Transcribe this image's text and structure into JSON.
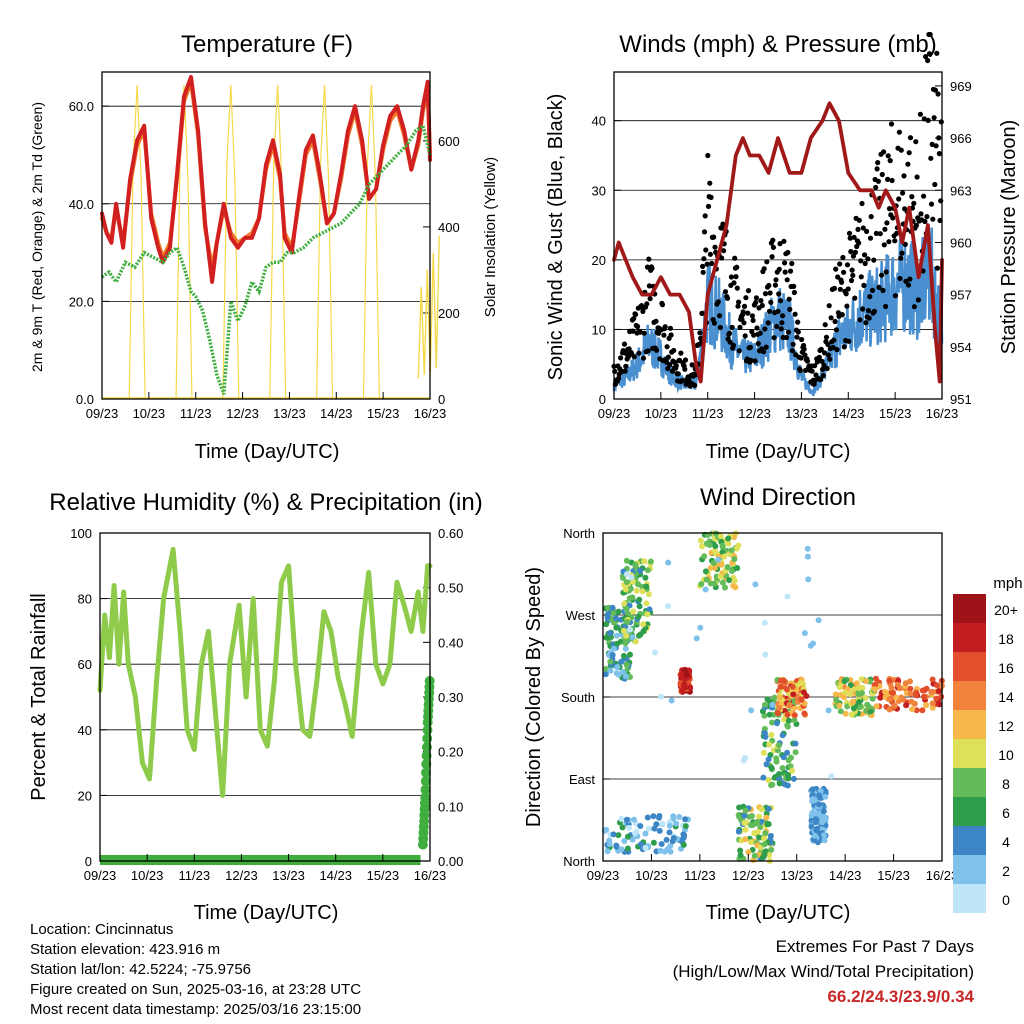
{
  "colors": {
    "temp_2m": "#d22020",
    "temp_9m": "#f07a2a",
    "dewpoint": "#3fae3f",
    "solar": "#f5d94a",
    "wind": "#4a90d0",
    "gust": "#000000",
    "pressure": "#a01818",
    "rh": "#8fcb4a",
    "precip": "#3fae3f",
    "extremes": "#c62828"
  },
  "x_ticks": [
    "09/23",
    "10/23",
    "11/23",
    "12/23",
    "13/23",
    "14/23",
    "15/23",
    "16/23"
  ],
  "chart_data": [
    {
      "id": "temperature",
      "type": "line",
      "title": "Temperature (F)",
      "xlabel": "Time (Day/UTC)",
      "ylabel_left": "2m & 9m T (Red, Orange) & 2m Td (Green)",
      "ylabel_right": "Solar Insolation (Yellow)",
      "ylim_left": [
        0,
        67
      ],
      "yticks_left": [
        "0.0",
        "20.0",
        "40.0",
        "60.0"
      ],
      "ylim_right": [
        0,
        760
      ],
      "yticks_right": [
        "0",
        "200",
        "400",
        "600"
      ],
      "x_unit": "days since 09/23",
      "series": [
        {
          "name": "2m T",
          "axis": "left",
          "x": [
            0,
            0.1,
            0.2,
            0.3,
            0.45,
            0.6,
            0.75,
            0.9,
            1.05,
            1.2,
            1.3,
            1.45,
            1.6,
            1.75,
            1.9,
            2.05,
            2.2,
            2.35,
            2.45,
            2.6,
            2.75,
            2.9,
            3.05,
            3.2,
            3.35,
            3.5,
            3.65,
            3.8,
            3.9,
            4.05,
            4.2,
            4.35,
            4.5,
            4.65,
            4.8,
            4.95,
            5.1,
            5.25,
            5.4,
            5.55,
            5.7,
            5.85,
            6.0,
            6.15,
            6.3,
            6.45,
            6.6,
            6.75,
            6.85,
            6.95,
            7.0
          ],
          "y": [
            38,
            34,
            32,
            40,
            31,
            45,
            53,
            56,
            37,
            31,
            28,
            31,
            46,
            62,
            66,
            55,
            36,
            24,
            32,
            40,
            33,
            31,
            33,
            33,
            37,
            48,
            53,
            46,
            33,
            30,
            41,
            51,
            54,
            46,
            36,
            38,
            46,
            55,
            60,
            53,
            41,
            43,
            52,
            58,
            60,
            55,
            47,
            53,
            60,
            65,
            49
          ]
        },
        {
          "name": "9m T",
          "axis": "left",
          "x": [
            0,
            0.1,
            0.2,
            0.3,
            0.45,
            0.6,
            0.75,
            0.9,
            1.05,
            1.2,
            1.3,
            1.45,
            1.6,
            1.75,
            1.9,
            2.05,
            2.2,
            2.35,
            2.45,
            2.6,
            2.75,
            2.9,
            3.05,
            3.2,
            3.35,
            3.5,
            3.65,
            3.8,
            3.9,
            4.05,
            4.2,
            4.35,
            4.5,
            4.65,
            4.8,
            4.95,
            5.1,
            5.25,
            5.4,
            5.55,
            5.7,
            5.85,
            6.0,
            6.15,
            6.3,
            6.45,
            6.6,
            6.75,
            6.85,
            6.95,
            7.0
          ],
          "y": [
            37,
            34,
            33,
            39,
            32,
            44,
            52,
            55,
            38,
            32,
            29,
            32,
            45,
            61,
            65,
            54,
            35,
            27,
            32,
            39,
            34,
            32,
            33,
            34,
            37,
            47,
            52,
            45,
            34,
            31,
            40,
            50,
            53,
            45,
            36,
            38,
            45,
            54,
            59,
            52,
            41,
            43,
            51,
            57,
            59,
            54,
            47,
            52,
            59,
            63,
            50
          ]
        },
        {
          "name": "2m Td",
          "axis": "left",
          "x": [
            0,
            0.15,
            0.3,
            0.5,
            0.7,
            0.9,
            1.1,
            1.3,
            1.45,
            1.6,
            1.75,
            1.9,
            2.0,
            2.15,
            2.3,
            2.45,
            2.6,
            2.75,
            2.9,
            3.05,
            3.2,
            3.35,
            3.5,
            3.65,
            3.8,
            3.95,
            4.1,
            4.3,
            4.5,
            4.7,
            4.9,
            5.1,
            5.3,
            5.5,
            5.7,
            5.9,
            6.1,
            6.3,
            6.5,
            6.7,
            6.85,
            7.0
          ],
          "y": [
            25,
            26,
            24,
            28,
            27,
            30,
            29,
            28,
            30,
            31,
            27,
            22,
            21,
            18,
            12,
            5,
            1,
            20,
            16,
            19,
            24,
            22,
            27,
            28,
            28,
            30,
            30,
            31,
            33,
            34,
            35,
            36,
            38,
            40,
            44,
            46,
            48,
            50,
            52,
            55,
            56,
            50
          ]
        },
        {
          "name": "Solar",
          "axis": "right",
          "peaks": [
            [
              0.75,
              730
            ],
            [
              1.75,
              730
            ],
            [
              2.75,
              730
            ],
            [
              3.75,
              730
            ],
            [
              4.75,
              730
            ],
            [
              5.75,
              730
            ]
          ],
          "partial": [
            [
              6.75,
              400
            ]
          ]
        }
      ]
    },
    {
      "id": "winds",
      "type": "line",
      "title": "Winds (mph) & Pressure (mb)",
      "xlabel": "Time (Day/UTC)",
      "ylabel_left": "Sonic Wind & Gust (Blue, Black)",
      "ylabel_right": "Station Pressure (Maroon)",
      "ylim_left": [
        0,
        47
      ],
      "yticks_left": [
        "0",
        "10",
        "20",
        "30",
        "40"
      ],
      "ylim_right": [
        951,
        969.8
      ],
      "yticks_right": [
        "951",
        "954",
        "957",
        "960",
        "963",
        "966",
        "969"
      ],
      "x_unit": "days since 09/23",
      "series": [
        {
          "name": "Sonic Wind",
          "axis": "left",
          "x": [
            0,
            0.25,
            0.5,
            0.75,
            1.0,
            1.25,
            1.5,
            1.75,
            2.0,
            2.25,
            2.5,
            2.75,
            3.0,
            3.25,
            3.5,
            3.75,
            4.0,
            4.25,
            4.5,
            4.75,
            5.0,
            5.25,
            5.5,
            5.75,
            6.0,
            6.25,
            6.5,
            6.75,
            7.0
          ],
          "y": [
            2,
            3,
            5,
            8,
            6,
            3,
            2,
            2,
            14,
            12,
            8,
            6,
            6,
            9,
            12,
            10,
            3,
            1,
            4,
            8,
            10,
            12,
            13,
            14,
            16,
            17,
            15,
            18,
            10
          ]
        },
        {
          "name": "Gust",
          "axis": "left",
          "x": [
            0,
            0.25,
            0.5,
            0.75,
            1.0,
            1.25,
            1.5,
            1.75,
            2.0,
            2.25,
            2.5,
            2.75,
            3.0,
            3.25,
            3.5,
            3.75,
            4.0,
            4.25,
            4.5,
            4.75,
            5.0,
            5.25,
            5.5,
            5.75,
            6.0,
            6.25,
            6.5,
            6.75,
            7.0
          ],
          "y": [
            4,
            6,
            9,
            14,
            11,
            6,
            4,
            3,
            24,
            20,
            15,
            11,
            10,
            14,
            17,
            15,
            6,
            3,
            7,
            13,
            16,
            19,
            22,
            24,
            28,
            27,
            26,
            38,
            30
          ]
        },
        {
          "name": "Station Pressure",
          "axis": "right",
          "x": [
            0,
            0.1,
            0.25,
            0.4,
            0.6,
            0.8,
            1.0,
            1.2,
            1.4,
            1.6,
            1.75,
            1.85,
            2.0,
            2.2,
            2.4,
            2.6,
            2.75,
            2.9,
            3.1,
            3.3,
            3.5,
            3.75,
            4.0,
            4.2,
            4.45,
            4.6,
            4.8,
            5.0,
            5.25,
            5.5,
            5.65,
            5.8,
            6.0,
            6.15,
            6.3,
            6.5,
            6.7,
            6.85,
            6.95,
            7.0
          ],
          "y": [
            959,
            960,
            959,
            958,
            957,
            957,
            958,
            957,
            957,
            956,
            953,
            952,
            957,
            959,
            961,
            965,
            966,
            965,
            965,
            964,
            966,
            964,
            964,
            966,
            967,
            968,
            967,
            964,
            963,
            963,
            962,
            963,
            962,
            960,
            962,
            958,
            961,
            955,
            952,
            959
          ]
        }
      ]
    },
    {
      "id": "humidity",
      "type": "line",
      "title": "Relative Humidity (%) & Precipitation (in)",
      "xlabel": "Time (Day/UTC)",
      "ylabel_left": "Percent & Total Rainfall",
      "ylim_left": [
        0,
        100
      ],
      "yticks_left": [
        "0",
        "20",
        "40",
        "60",
        "80",
        "100"
      ],
      "ylim_right": [
        0,
        0.6
      ],
      "yticks_right": [
        "0.00",
        "0.10",
        "0.20",
        "0.30",
        "0.40",
        "0.50",
        "0.60"
      ],
      "x_unit": "days since 09/23",
      "series": [
        {
          "name": "RH",
          "axis": "left",
          "x": [
            0,
            0.1,
            0.2,
            0.3,
            0.4,
            0.5,
            0.6,
            0.75,
            0.9,
            1.05,
            1.2,
            1.35,
            1.55,
            1.7,
            1.85,
            2.0,
            2.15,
            2.3,
            2.45,
            2.6,
            2.75,
            2.95,
            3.1,
            3.25,
            3.4,
            3.55,
            3.7,
            3.85,
            4.0,
            4.15,
            4.3,
            4.45,
            4.6,
            4.75,
            4.9,
            5.05,
            5.2,
            5.35,
            5.55,
            5.7,
            5.85,
            6.0,
            6.15,
            6.3,
            6.45,
            6.6,
            6.75,
            6.85,
            6.95,
            7.0
          ],
          "y": [
            52,
            75,
            62,
            84,
            60,
            82,
            60,
            50,
            30,
            25,
            55,
            80,
            95,
            70,
            40,
            34,
            60,
            70,
            45,
            20,
            60,
            78,
            50,
            80,
            40,
            35,
            55,
            85,
            90,
            60,
            40,
            38,
            55,
            76,
            70,
            56,
            48,
            38,
            70,
            88,
            60,
            54,
            60,
            85,
            78,
            70,
            82,
            70,
            90,
            90
          ]
        },
        {
          "name": "Precipitation",
          "axis": "right",
          "x": [
            0,
            1,
            2,
            3,
            4,
            5,
            6,
            6.75,
            6.85,
            6.9,
            6.95,
            7.0
          ],
          "y": [
            0,
            0,
            0,
            0,
            0,
            0,
            0,
            0.0,
            0.03,
            0.12,
            0.25,
            0.34
          ]
        }
      ]
    },
    {
      "id": "direction",
      "type": "scatter",
      "title": "Wind Direction",
      "xlabel": "Time (Day/UTC)",
      "ylabel": "Direction (Colored By Speed)",
      "yticks": [
        "North",
        "East",
        "South",
        "West",
        "North"
      ],
      "ylim": [
        0,
        360
      ],
      "legend_title": "mph",
      "legend_labels": [
        "0",
        "2",
        "4",
        "6",
        "8",
        "10",
        "12",
        "14",
        "16",
        "18",
        "20+"
      ],
      "legend_colors": [
        "#bfe6f8",
        "#7ec1ea",
        "#3d86c6",
        "#2f9e4a",
        "#63bb5a",
        "#dfe05a",
        "#f6b84a",
        "#f1823c",
        "#e24f2d",
        "#c21e21",
        "#9e1218"
      ],
      "x_unit": "days since 09/23",
      "clusters": [
        {
          "x": [
            0.05,
            0.6
          ],
          "y": [
            200,
            280
          ],
          "c": [
            1,
            4
          ]
        },
        {
          "x": [
            0.4,
            1.0
          ],
          "y": [
            240,
            330
          ],
          "c": [
            2,
            5
          ]
        },
        {
          "x": [
            0.0,
            1.8
          ],
          "y": [
            10,
            50
          ],
          "c": [
            0,
            3
          ]
        },
        {
          "x": [
            1.6,
            1.8
          ],
          "y": [
            185,
            210
          ],
          "c": [
            8,
            10
          ]
        },
        {
          "x": [
            2.0,
            2.8
          ],
          "y": [
            300,
            360
          ],
          "c": [
            3,
            6
          ]
        },
        {
          "x": [
            2.8,
            3.5
          ],
          "y": [
            0,
            60
          ],
          "c": [
            2,
            6
          ]
        },
        {
          "x": [
            3.3,
            4.0
          ],
          "y": [
            80,
            180
          ],
          "c": [
            2,
            5
          ]
        },
        {
          "x": [
            3.6,
            4.2
          ],
          "y": [
            160,
            200
          ],
          "c": [
            4,
            9
          ]
        },
        {
          "x": [
            4.3,
            4.6
          ],
          "y": [
            20,
            80
          ],
          "c": [
            1,
            2
          ]
        },
        {
          "x": [
            4.8,
            5.6
          ],
          "y": [
            160,
            200
          ],
          "c": [
            3,
            7
          ]
        },
        {
          "x": [
            5.6,
            7.0
          ],
          "y": [
            165,
            200
          ],
          "c": [
            6,
            9
          ]
        },
        {
          "x": [
            0.3,
            4.8
          ],
          "y": [
            80,
            350
          ],
          "c": [
            0,
            1
          ]
        }
      ]
    }
  ],
  "station": {
    "location": "Location: Cincinnatus",
    "elevation": "Station elevation: 423.916 m",
    "latlon": "Station lat/lon: 42.5224; -75.9756",
    "created": "Figure created on Sun, 2025-03-16, at 23:28 UTC",
    "recent": "Most recent data timestamp: 2025/03/16 23:15:00"
  },
  "extremes": {
    "title": "Extremes For Past 7 Days",
    "subtitle": "(High/Low/Max Wind/Total Precipitation)",
    "values": "66.2/24.3/23.9/0.34"
  }
}
